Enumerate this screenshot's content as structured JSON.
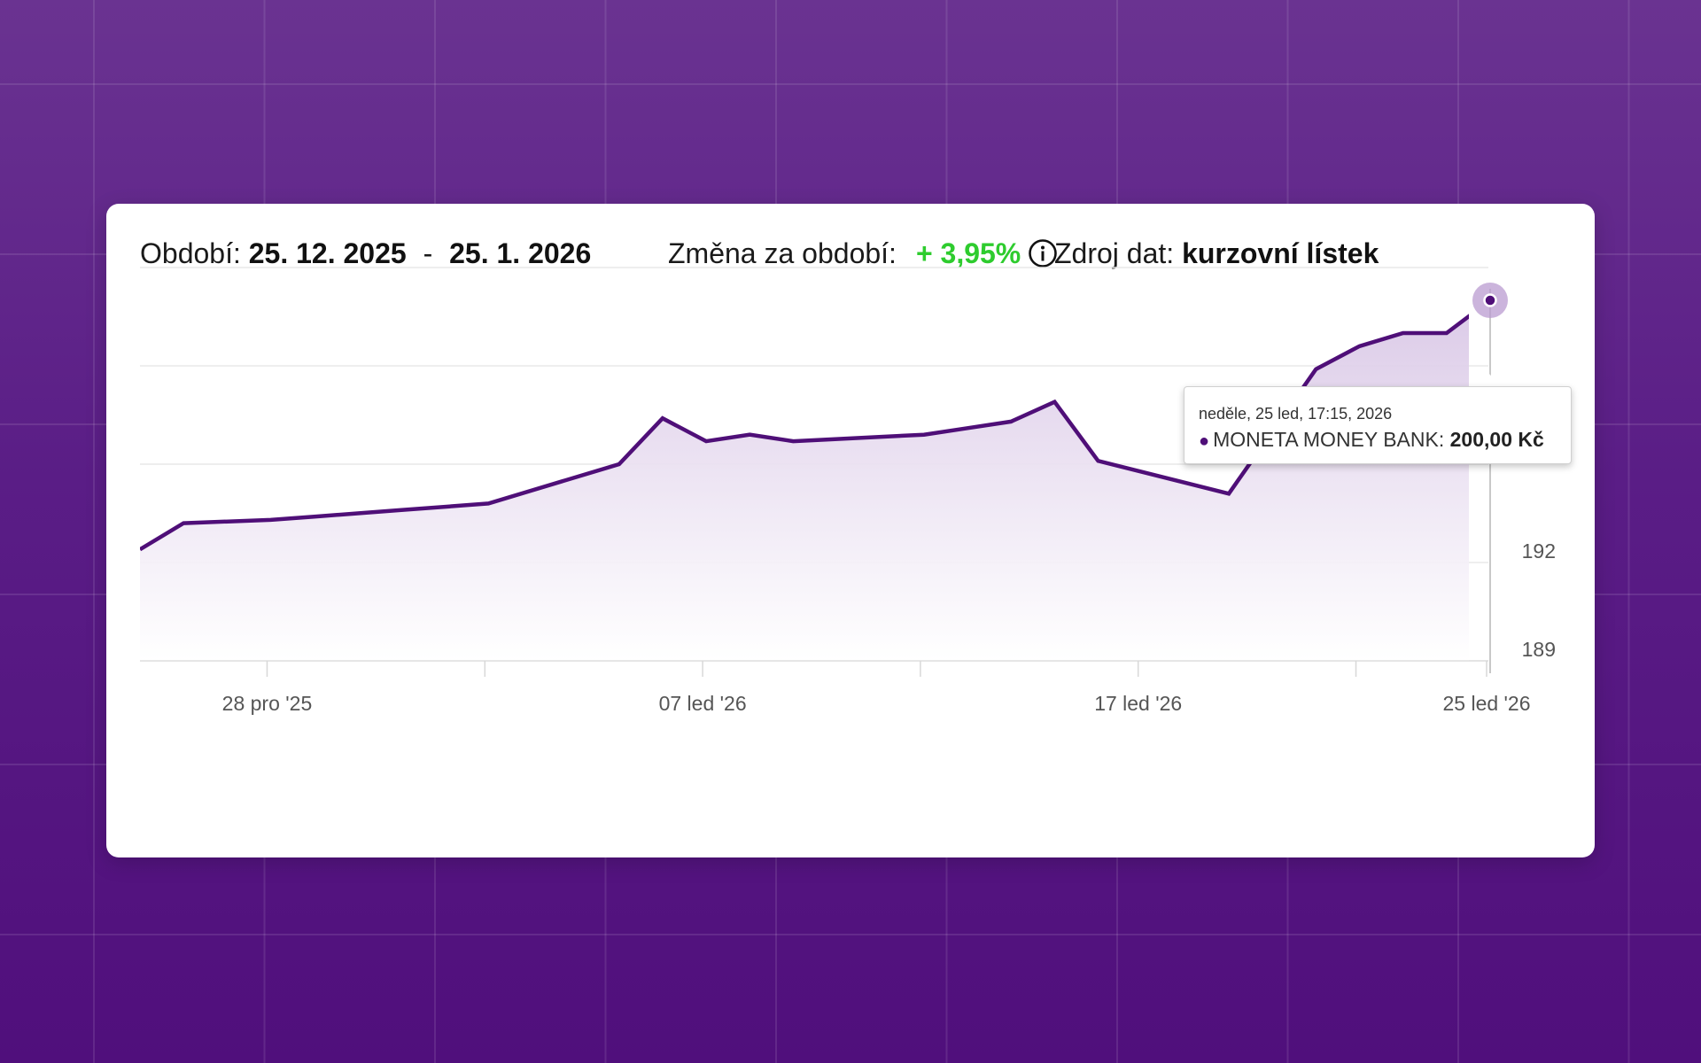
{
  "header": {
    "period_label": "Období:",
    "period_from": "25. 12. 2025",
    "period_sep": "-",
    "period_to": "25. 1. 2026",
    "change_label": "Změna za období:",
    "change_value": "+ 3,95%",
    "source_label": "Zdroj dat:",
    "source_value": "kurzovní lístek",
    "icons": {
      "info": "info-circle-icon"
    },
    "colors": {
      "positive": "#2ecc2e",
      "accent": "#4f0f78"
    }
  },
  "tooltip": {
    "date": "neděle, 25 led, 17:15, 2026",
    "series": "MONETA MONEY BANK:",
    "value": "200,00 Kč"
  },
  "chart_data": {
    "type": "area",
    "x": [
      "2025-12-25",
      "2025-12-26",
      "2025-12-28",
      "2025-12-29",
      "2025-12-30",
      "2025-12-31",
      "2026-01-02",
      "2026-01-05",
      "2026-01-06",
      "2026-01-07",
      "2026-01-08",
      "2026-01-09",
      "2026-01-12",
      "2026-01-13",
      "2026-01-14",
      "2026-01-15",
      "2026-01-16",
      "2026-01-19",
      "2026-01-20",
      "2026-01-21",
      "2026-01-22",
      "2026-01-23",
      "2026-01-24",
      "2026-01-25"
    ],
    "values": [
      192.4,
      193.2,
      193.3,
      193.4,
      193.5,
      193.6,
      193.8,
      195.0,
      196.4,
      195.7,
      195.9,
      195.7,
      195.9,
      196.1,
      196.3,
      196.9,
      195.1,
      194.1,
      196.0,
      197.9,
      198.6,
      199.0,
      199.0,
      200.0
    ],
    "x_tick_labels": [
      "28 pro '25",
      "07 led '26",
      "17 led '26",
      "25 led '26"
    ],
    "y_ticks": [
      189,
      192,
      195
    ],
    "ylim": [
      189,
      201
    ],
    "grid": true,
    "line_color": "#4f0f78",
    "fill_color": "#d9c7e6",
    "highlight_index": 23
  }
}
